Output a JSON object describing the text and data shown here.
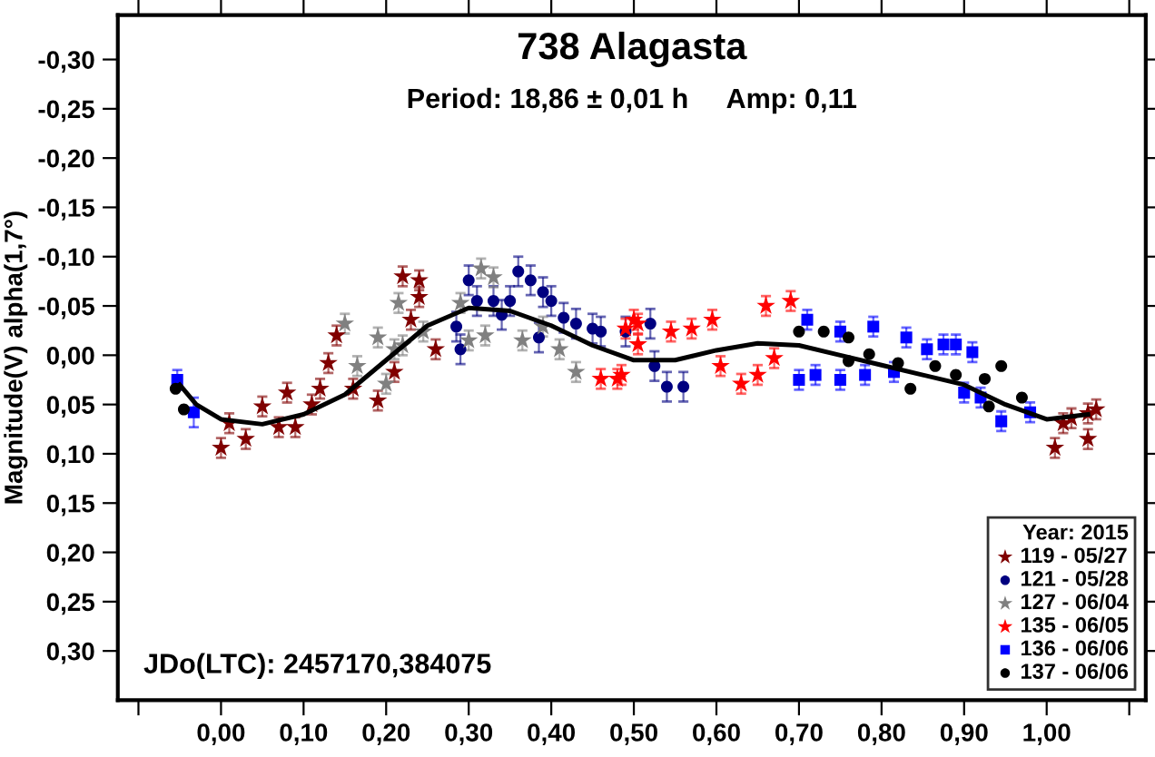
{
  "chart_data": {
    "type": "scatter",
    "title": "738 Alagasta",
    "subtitle": "Period: 18,86 ± 0,01 h     Amp: 0,11",
    "ylabel": "Magnitude(V) alpha(1,7°)",
    "legend_title": "Year: 2015",
    "legend": "bottom right",
    "grid": false,
    "annotations": [
      "JDo(LTC): 2457170,384075"
    ],
    "xlim": [
      -0.125,
      1.12
    ],
    "ylim": [
      0.35,
      -0.345
    ],
    "xticks": [
      {
        "value": -0.1,
        "label": null
      },
      {
        "value": 0.0,
        "label": "0,00"
      },
      {
        "value": 0.1,
        "label": "0,10"
      },
      {
        "value": 0.2,
        "label": "0,20"
      },
      {
        "value": 0.3,
        "label": "0,30"
      },
      {
        "value": 0.4,
        "label": "0,40"
      },
      {
        "value": 0.5,
        "label": "0,50"
      },
      {
        "value": 0.6,
        "label": "0,60"
      },
      {
        "value": 0.7,
        "label": "0,70"
      },
      {
        "value": 0.8,
        "label": "0,80"
      },
      {
        "value": 0.9,
        "label": "0,90"
      },
      {
        "value": 1.0,
        "label": "1,00"
      },
      {
        "value": 1.1,
        "label": null
      }
    ],
    "yticks": [
      {
        "value": -0.3,
        "label": "-0,30"
      },
      {
        "value": -0.25,
        "label": "-0,25"
      },
      {
        "value": -0.2,
        "label": "-0,20"
      },
      {
        "value": -0.15,
        "label": "-0,15"
      },
      {
        "value": -0.1,
        "label": "-0,10"
      },
      {
        "value": -0.05,
        "label": "-0,05"
      },
      {
        "value": 0.0,
        "label": "0,00"
      },
      {
        "value": 0.05,
        "label": "0,05"
      },
      {
        "value": 0.1,
        "label": "0,10"
      },
      {
        "value": 0.15,
        "label": "0,15"
      },
      {
        "value": 0.2,
        "label": "0,20"
      },
      {
        "value": 0.25,
        "label": "0,25"
      },
      {
        "value": 0.3,
        "label": "0,30"
      }
    ],
    "series": [
      {
        "name": "119 - 05/27",
        "color": "#800000",
        "marker": "star",
        "x": [
          0.0,
          0.01,
          0.03,
          0.05,
          0.07,
          0.08,
          0.09,
          0.11,
          0.12,
          0.13,
          0.14,
          0.16,
          0.19,
          0.21,
          0.22,
          0.23,
          0.24,
          0.24,
          0.26,
          1.01,
          1.02,
          1.03,
          1.05,
          1.05,
          1.06
        ],
        "values": [
          0.094,
          0.069,
          0.085,
          0.052,
          0.073,
          0.038,
          0.073,
          0.05,
          0.034,
          0.008,
          -0.02,
          0.034,
          0.046,
          0.017,
          -0.08,
          -0.036,
          -0.059,
          -0.076,
          -0.006,
          0.094,
          0.069,
          0.064,
          0.085,
          0.059,
          0.055
        ],
        "errors": [
          0.01,
          0.01,
          0.01,
          0.01,
          0.01,
          0.01,
          0.01,
          0.01,
          0.01,
          0.01,
          0.01,
          0.01,
          0.01,
          0.01,
          0.01,
          0.01,
          0.01,
          0.01,
          0.01,
          0.01,
          0.01,
          0.01,
          0.01,
          0.01,
          0.01
        ]
      },
      {
        "name": "121 - 05/28",
        "color": "#000080",
        "marker": "circle",
        "x": [
          0.285,
          0.29,
          0.3,
          0.31,
          0.33,
          0.34,
          0.35,
          0.36,
          0.375,
          0.385,
          0.39,
          0.4,
          0.415,
          0.43,
          0.45,
          0.46,
          0.49,
          0.52,
          0.525,
          0.54,
          0.56
        ],
        "values": [
          -0.029,
          -0.006,
          -0.076,
          -0.055,
          -0.055,
          -0.041,
          -0.055,
          -0.085,
          -0.076,
          -0.018,
          -0.064,
          -0.055,
          -0.038,
          -0.032,
          -0.027,
          -0.024,
          -0.024,
          -0.032,
          0.011,
          0.032,
          0.032
        ],
        "errors": [
          0.015,
          0.015,
          0.015,
          0.015,
          0.015,
          0.015,
          0.015,
          0.015,
          0.015,
          0.015,
          0.015,
          0.015,
          0.015,
          0.015,
          0.015,
          0.015,
          0.015,
          0.015,
          0.015,
          0.015,
          0.015
        ]
      },
      {
        "name": "127 - 06/04",
        "color": "#808080",
        "marker": "star",
        "x": [
          0.15,
          0.165,
          0.19,
          0.2,
          0.21,
          0.215,
          0.22,
          0.245,
          0.29,
          0.3,
          0.315,
          0.32,
          0.33,
          0.365,
          0.39,
          0.41,
          0.43
        ],
        "values": [
          -0.032,
          0.011,
          -0.018,
          0.029,
          -0.006,
          -0.053,
          -0.01,
          -0.024,
          -0.053,
          -0.015,
          -0.088,
          -0.02,
          -0.079,
          -0.015,
          -0.029,
          -0.006,
          0.017
        ],
        "errors": [
          0.01,
          0.01,
          0.01,
          0.01,
          0.01,
          0.01,
          0.01,
          0.01,
          0.01,
          0.01,
          0.01,
          0.01,
          0.01,
          0.01,
          0.01,
          0.01,
          0.01
        ]
      },
      {
        "name": "135 - 06/05",
        "color": "#ff0000",
        "marker": "star",
        "x": [
          0.46,
          0.48,
          0.485,
          0.49,
          0.5,
          0.505,
          0.505,
          0.545,
          0.57,
          0.595,
          0.605,
          0.63,
          0.65,
          0.66,
          0.67,
          0.69
        ],
        "values": [
          0.024,
          0.024,
          0.02,
          -0.027,
          -0.036,
          -0.032,
          -0.011,
          -0.024,
          -0.027,
          -0.036,
          0.011,
          0.029,
          0.02,
          -0.05,
          0.003,
          -0.055
        ],
        "errors": [
          0.01,
          0.01,
          0.01,
          0.01,
          0.01,
          0.01,
          0.01,
          0.01,
          0.01,
          0.01,
          0.01,
          0.01,
          0.01,
          0.01,
          0.01,
          0.01
        ]
      },
      {
        "name": "136 - 06/06",
        "color": "#0000ff",
        "marker": "square",
        "x": [
          -0.053,
          -0.033,
          0.7,
          0.71,
          0.72,
          0.75,
          0.75,
          0.78,
          0.79,
          0.815,
          0.83,
          0.855,
          0.875,
          0.89,
          0.9,
          0.91,
          0.92,
          0.945,
          0.98
        ],
        "values": [
          0.025,
          0.058,
          0.025,
          -0.036,
          0.02,
          0.025,
          -0.024,
          0.02,
          -0.029,
          0.017,
          -0.018,
          -0.006,
          -0.011,
          -0.011,
          0.038,
          -0.003,
          0.043,
          0.067,
          0.058
        ],
        "errors": [
          0.01,
          0.015,
          0.01,
          0.01,
          0.01,
          0.01,
          0.01,
          0.01,
          0.01,
          0.01,
          0.01,
          0.01,
          0.01,
          0.01,
          0.01,
          0.01,
          0.01,
          0.01,
          0.01
        ]
      },
      {
        "name": "137 - 06/06",
        "color": "#000000",
        "marker": "circle",
        "x": [
          -0.055,
          -0.045,
          0.7,
          0.73,
          0.76,
          0.76,
          0.785,
          0.82,
          0.835,
          0.865,
          0.89,
          0.925,
          0.93,
          0.945,
          0.97
        ],
        "values": [
          0.034,
          0.055,
          -0.024,
          -0.024,
          -0.018,
          0.006,
          -0.001,
          0.008,
          0.034,
          0.011,
          0.02,
          0.024,
          0.052,
          0.011,
          0.043
        ]
      },
      {
        "type": "line",
        "color": "#000000",
        "marker": "none",
        "line_style": "solid",
        "x": [
          -0.05,
          -0.03,
          0.0,
          0.05,
          0.1,
          0.15,
          0.2,
          0.25,
          0.3,
          0.35,
          0.4,
          0.45,
          0.5,
          0.55,
          0.6,
          0.65,
          0.7,
          0.75,
          0.8,
          0.85,
          0.9,
          0.95,
          1.0,
          1.05
        ],
        "values": [
          0.03,
          0.05,
          0.065,
          0.07,
          0.06,
          0.04,
          0.005,
          -0.03,
          -0.048,
          -0.045,
          -0.03,
          -0.01,
          0.005,
          0.005,
          -0.005,
          -0.012,
          -0.01,
          0.0,
          0.01,
          0.02,
          0.03,
          0.05,
          0.065,
          0.06
        ]
      }
    ]
  }
}
